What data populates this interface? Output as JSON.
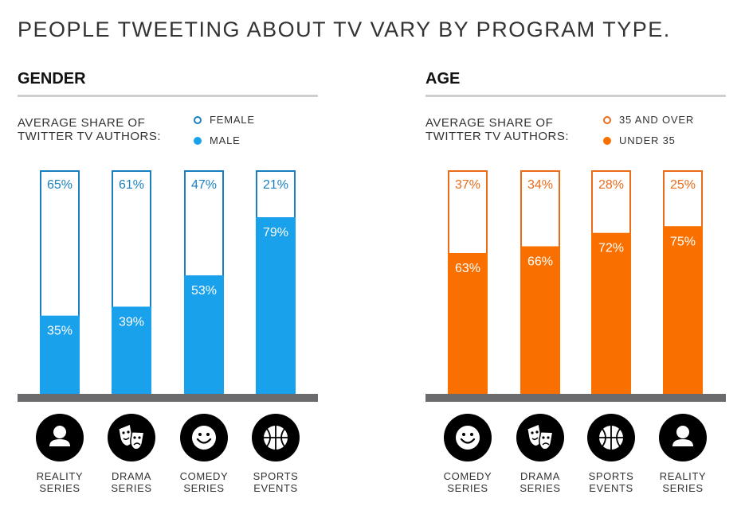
{
  "title": "PEOPLE TWEETING ABOUT TV VARY BY PROGRAM TYPE.",
  "colors": {
    "blue": "#1aa1eb",
    "blue_outline": "#1a7fc1",
    "orange": "#fa7000",
    "orange_outline": "#ea6c1b",
    "baseline": "#6b6b6d"
  },
  "gender": {
    "heading": "GENDER",
    "legend_text_line1": "AVERAGE SHARE OF",
    "legend_text_line2": "TWITTER TV AUTHORS:",
    "legend_top": "FEMALE",
    "legend_bottom": "MALE"
  },
  "age": {
    "heading": "AGE",
    "legend_text_line1": "AVERAGE SHARE OF",
    "legend_text_line2": "TWITTER TV AUTHORS:",
    "legend_top": "35 AND OVER",
    "legend_bottom": "UNDER 35"
  },
  "chart_data": [
    {
      "type": "bar",
      "stacked": true,
      "title": "GENDER",
      "categories": [
        "REALITY\nSERIES",
        "DRAMA\nSERIES",
        "COMEDY\nSERIES",
        "SPORTS\nEVENTS"
      ],
      "icons": [
        "person-icon",
        "drama-masks-icon",
        "smiley-icon",
        "basketball-icon"
      ],
      "series": [
        {
          "name": "MALE",
          "values": [
            35,
            39,
            53,
            79
          ],
          "labels": [
            "35%",
            "39%",
            "53%",
            "79%"
          ],
          "style": "filled"
        },
        {
          "name": "FEMALE",
          "values": [
            65,
            61,
            47,
            21
          ],
          "labels": [
            "65%",
            "61%",
            "47%",
            "21%"
          ],
          "style": "outline"
        }
      ],
      "ylim": [
        0,
        100
      ]
    },
    {
      "type": "bar",
      "stacked": true,
      "title": "AGE",
      "categories": [
        "COMEDY\nSERIES",
        "DRAMA\nSERIES",
        "SPORTS\nEVENTS",
        "REALITY\nSERIES"
      ],
      "icons": [
        "smiley-icon",
        "drama-masks-icon",
        "basketball-icon",
        "person-icon"
      ],
      "series": [
        {
          "name": "UNDER 35",
          "values": [
            63,
            66,
            72,
            75
          ],
          "labels": [
            "63%",
            "66%",
            "72%",
            "75%"
          ],
          "style": "filled"
        },
        {
          "name": "35 AND OVER",
          "values": [
            37,
            34,
            28,
            25
          ],
          "labels": [
            "37%",
            "34%",
            "28%",
            "25%"
          ],
          "style": "outline"
        }
      ],
      "ylim": [
        0,
        100
      ]
    }
  ]
}
